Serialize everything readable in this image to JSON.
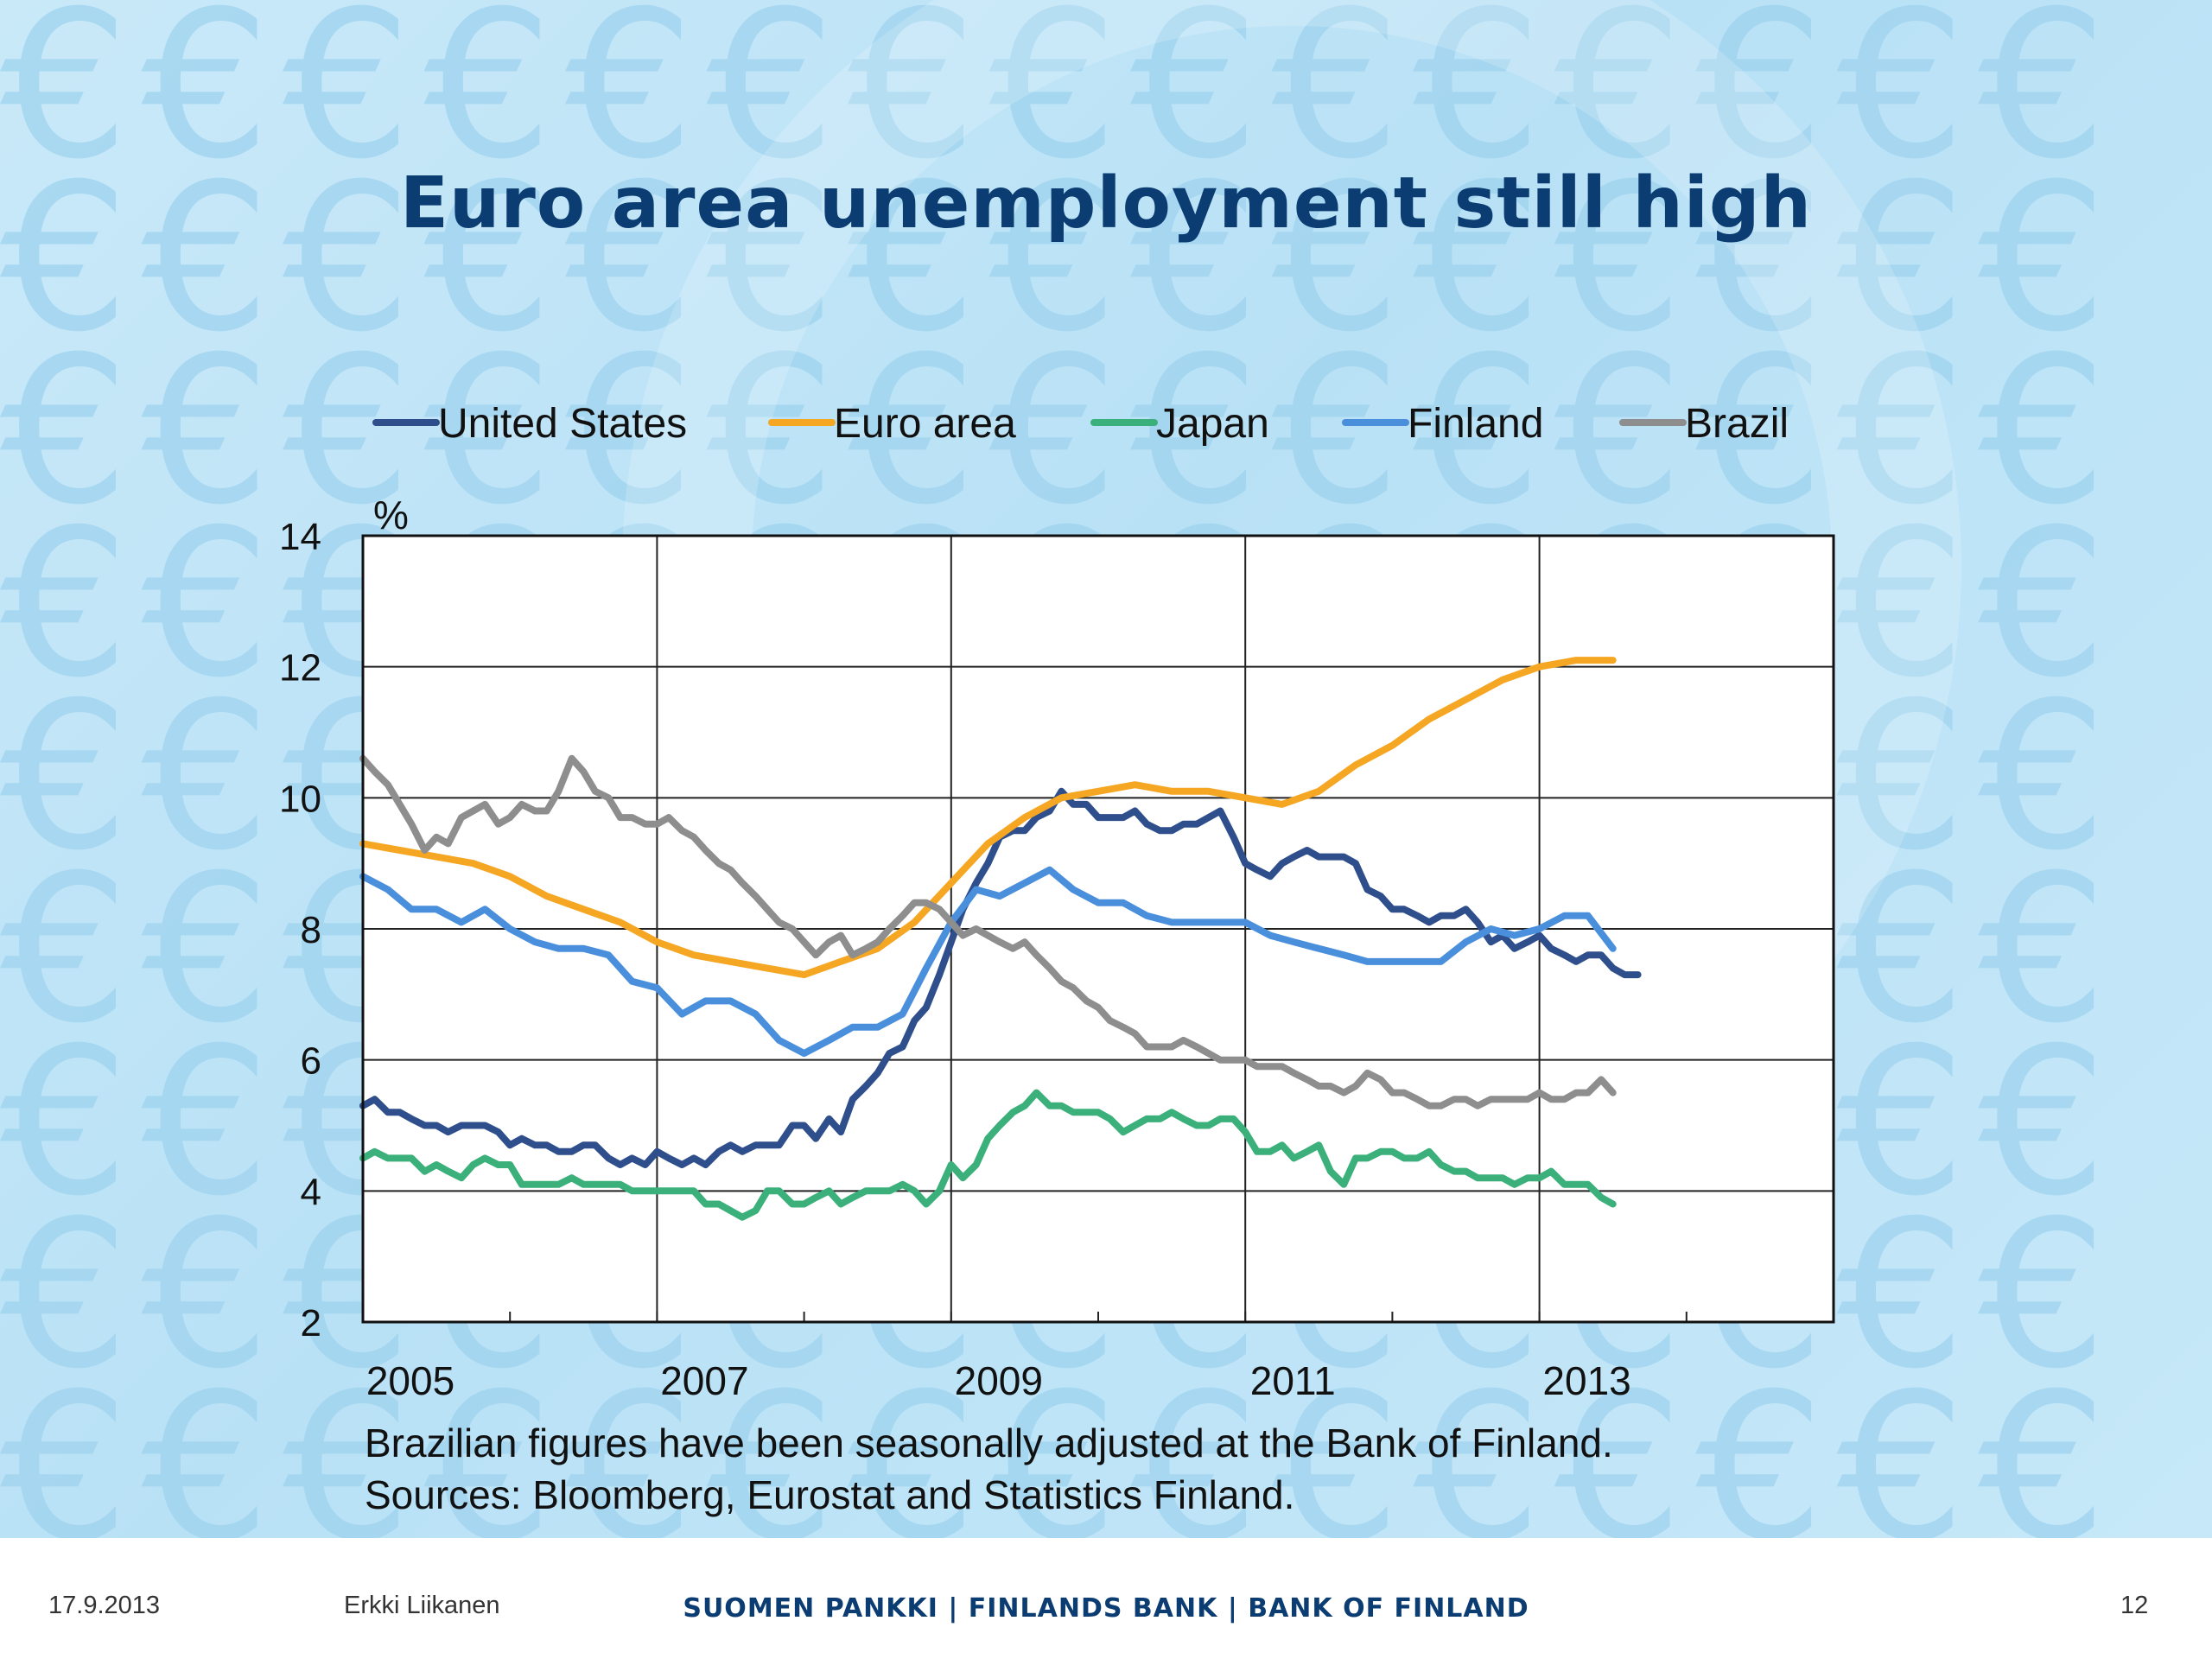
{
  "slide": {
    "title": "Euro area unemployment still high",
    "notes": [
      "Brazilian figures have been seasonally adjusted at the Bank of Finland.",
      "Sources: Bloomberg, Eurostat and Statistics Finland."
    ]
  },
  "footer": {
    "date": "17.9.2013",
    "author": "Erkki Liikanen",
    "bank": "SUOMEN PANKKI | FINLANDS BANK | BANK OF FINLAND",
    "page": "12"
  },
  "colors": {
    "title": "#0b3d73",
    "united_states": "#2f4f8c",
    "euro_area": "#f5a623",
    "japan": "#3bb07a",
    "finland": "#4a8fdc",
    "brazil": "#8e8e8e"
  },
  "background_icon": "euro-sign-icon",
  "chart_data": {
    "type": "line",
    "ylabel": "%",
    "ylim": [
      2,
      14
    ],
    "yticks": [
      2,
      4,
      6,
      8,
      10,
      12,
      14
    ],
    "xlim": [
      2005,
      2015
    ],
    "xticks": [
      2005,
      2007,
      2009,
      2011,
      2013
    ],
    "grid": true,
    "legend_position": "top",
    "series": [
      {
        "name": "United States",
        "color": "#2f4f8c",
        "x": [
          2005.0,
          2005.08,
          2005.17,
          2005.25,
          2005.33,
          2005.42,
          2005.5,
          2005.58,
          2005.67,
          2005.75,
          2005.83,
          2005.92,
          2006.0,
          2006.08,
          2006.17,
          2006.25,
          2006.33,
          2006.42,
          2006.5,
          2006.58,
          2006.67,
          2006.75,
          2006.83,
          2006.92,
          2007.0,
          2007.08,
          2007.17,
          2007.25,
          2007.33,
          2007.42,
          2007.5,
          2007.58,
          2007.67,
          2007.75,
          2007.83,
          2007.92,
          2008.0,
          2008.08,
          2008.17,
          2008.25,
          2008.33,
          2008.42,
          2008.5,
          2008.58,
          2008.67,
          2008.75,
          2008.83,
          2008.92,
          2009.0,
          2009.08,
          2009.17,
          2009.25,
          2009.33,
          2009.42,
          2009.5,
          2009.58,
          2009.67,
          2009.75,
          2009.83,
          2009.92,
          2010.0,
          2010.08,
          2010.17,
          2010.25,
          2010.33,
          2010.42,
          2010.5,
          2010.58,
          2010.67,
          2010.75,
          2010.83,
          2010.92,
          2011.0,
          2011.08,
          2011.17,
          2011.25,
          2011.33,
          2011.42,
          2011.5,
          2011.58,
          2011.67,
          2011.75,
          2011.83,
          2011.92,
          2012.0,
          2012.08,
          2012.17,
          2012.25,
          2012.33,
          2012.42,
          2012.5,
          2012.58,
          2012.67,
          2012.75,
          2012.83,
          2012.92,
          2013.0,
          2013.08,
          2013.17,
          2013.25,
          2013.33,
          2013.42,
          2013.5,
          2013.58,
          2013.67
        ],
        "y": [
          5.3,
          5.4,
          5.2,
          5.2,
          5.1,
          5.0,
          5.0,
          4.9,
          5.0,
          5.0,
          5.0,
          4.9,
          4.7,
          4.8,
          4.7,
          4.7,
          4.6,
          4.6,
          4.7,
          4.7,
          4.5,
          4.4,
          4.5,
          4.4,
          4.6,
          4.5,
          4.4,
          4.5,
          4.4,
          4.6,
          4.7,
          4.6,
          4.7,
          4.7,
          4.7,
          5.0,
          5.0,
          4.8,
          5.1,
          4.9,
          5.4,
          5.6,
          5.8,
          6.1,
          6.2,
          6.6,
          6.8,
          7.3,
          7.8,
          8.3,
          8.7,
          9.0,
          9.4,
          9.5,
          9.5,
          9.7,
          9.8,
          10.1,
          9.9,
          9.9,
          9.7,
          9.7,
          9.7,
          9.8,
          9.6,
          9.5,
          9.5,
          9.6,
          9.6,
          9.7,
          9.8,
          9.4,
          9.0,
          8.9,
          8.8,
          9.0,
          9.1,
          9.2,
          9.1,
          9.1,
          9.1,
          9.0,
          8.6,
          8.5,
          8.3,
          8.3,
          8.2,
          8.1,
          8.2,
          8.2,
          8.3,
          8.1,
          7.8,
          7.9,
          7.7,
          7.8,
          7.9,
          7.7,
          7.6,
          7.5,
          7.6,
          7.6,
          7.4,
          7.3,
          7.3
        ]
      },
      {
        "name": "Euro area",
        "color": "#f5a623",
        "x": [
          2005.0,
          2005.25,
          2005.5,
          2005.75,
          2006.0,
          2006.25,
          2006.5,
          2006.75,
          2007.0,
          2007.25,
          2007.5,
          2007.75,
          2008.0,
          2008.25,
          2008.5,
          2008.75,
          2009.0,
          2009.25,
          2009.5,
          2009.75,
          2010.0,
          2010.25,
          2010.5,
          2010.75,
          2011.0,
          2011.25,
          2011.5,
          2011.75,
          2012.0,
          2012.25,
          2012.5,
          2012.75,
          2013.0,
          2013.25,
          2013.5
        ],
        "y": [
          9.3,
          9.2,
          9.1,
          9.0,
          8.8,
          8.5,
          8.3,
          8.1,
          7.8,
          7.6,
          7.5,
          7.4,
          7.3,
          7.5,
          7.7,
          8.1,
          8.7,
          9.3,
          9.7,
          10.0,
          10.1,
          10.2,
          10.1,
          10.1,
          10.0,
          9.9,
          10.1,
          10.5,
          10.8,
          11.2,
          11.5,
          11.8,
          12.0,
          12.1,
          12.1
        ]
      },
      {
        "name": "Japan",
        "color": "#3bb07a",
        "x": [
          2005.0,
          2005.08,
          2005.17,
          2005.25,
          2005.33,
          2005.42,
          2005.5,
          2005.58,
          2005.67,
          2005.75,
          2005.83,
          2005.92,
          2006.0,
          2006.08,
          2006.17,
          2006.25,
          2006.33,
          2006.42,
          2006.5,
          2006.58,
          2006.67,
          2006.75,
          2006.83,
          2006.92,
          2007.0,
          2007.08,
          2007.17,
          2007.25,
          2007.33,
          2007.42,
          2007.5,
          2007.58,
          2007.67,
          2007.75,
          2007.83,
          2007.92,
          2008.0,
          2008.08,
          2008.17,
          2008.25,
          2008.33,
          2008.42,
          2008.5,
          2008.58,
          2008.67,
          2008.75,
          2008.83,
          2008.92,
          2009.0,
          2009.08,
          2009.17,
          2009.25,
          2009.33,
          2009.42,
          2009.5,
          2009.58,
          2009.67,
          2009.75,
          2009.83,
          2009.92,
          2010.0,
          2010.08,
          2010.17,
          2010.25,
          2010.33,
          2010.42,
          2010.5,
          2010.58,
          2010.67,
          2010.75,
          2010.83,
          2010.92,
          2011.0,
          2011.08,
          2011.17,
          2011.25,
          2011.33,
          2011.42,
          2011.5,
          2011.58,
          2011.67,
          2011.75,
          2011.83,
          2011.92,
          2012.0,
          2012.08,
          2012.17,
          2012.25,
          2012.33,
          2012.42,
          2012.5,
          2012.58,
          2012.67,
          2012.75,
          2012.83,
          2012.92,
          2013.0,
          2013.08,
          2013.17,
          2013.25,
          2013.33,
          2013.42,
          2013.5
        ],
        "y": [
          4.5,
          4.6,
          4.5,
          4.5,
          4.5,
          4.3,
          4.4,
          4.3,
          4.2,
          4.4,
          4.5,
          4.4,
          4.4,
          4.1,
          4.1,
          4.1,
          4.1,
          4.2,
          4.1,
          4.1,
          4.1,
          4.1,
          4.0,
          4.0,
          4.0,
          4.0,
          4.0,
          4.0,
          3.8,
          3.8,
          3.7,
          3.6,
          3.7,
          4.0,
          4.0,
          3.8,
          3.8,
          3.9,
          4.0,
          3.8,
          3.9,
          4.0,
          4.0,
          4.0,
          4.1,
          4.0,
          3.8,
          4.0,
          4.4,
          4.2,
          4.4,
          4.8,
          5.0,
          5.2,
          5.3,
          5.5,
          5.3,
          5.3,
          5.2,
          5.2,
          5.2,
          5.1,
          4.9,
          5.0,
          5.1,
          5.1,
          5.2,
          5.1,
          5.0,
          5.0,
          5.1,
          5.1,
          4.9,
          4.6,
          4.6,
          4.7,
          4.5,
          4.6,
          4.7,
          4.3,
          4.1,
          4.5,
          4.5,
          4.6,
          4.6,
          4.5,
          4.5,
          4.6,
          4.4,
          4.3,
          4.3,
          4.2,
          4.2,
          4.2,
          4.1,
          4.2,
          4.2,
          4.3,
          4.1,
          4.1,
          4.1,
          3.9,
          3.8
        ]
      },
      {
        "name": "Finland",
        "color": "#4a8fdc",
        "x": [
          2005.0,
          2005.17,
          2005.33,
          2005.5,
          2005.67,
          2005.83,
          2006.0,
          2006.17,
          2006.33,
          2006.5,
          2006.67,
          2006.83,
          2007.0,
          2007.17,
          2007.33,
          2007.5,
          2007.67,
          2007.83,
          2008.0,
          2008.17,
          2008.33,
          2008.5,
          2008.67,
          2008.83,
          2009.0,
          2009.17,
          2009.33,
          2009.5,
          2009.67,
          2009.83,
          2010.0,
          2010.17,
          2010.33,
          2010.5,
          2010.67,
          2010.83,
          2011.0,
          2011.17,
          2011.33,
          2011.5,
          2011.67,
          2011.83,
          2012.0,
          2012.17,
          2012.33,
          2012.5,
          2012.67,
          2012.83,
          2013.0,
          2013.17,
          2013.33,
          2013.5
        ],
        "y": [
          8.8,
          8.6,
          8.3,
          8.3,
          8.1,
          8.3,
          8.0,
          7.8,
          7.7,
          7.7,
          7.6,
          7.2,
          7.1,
          6.7,
          6.9,
          6.9,
          6.7,
          6.3,
          6.1,
          6.3,
          6.5,
          6.5,
          6.7,
          7.4,
          8.1,
          8.6,
          8.5,
          8.7,
          8.9,
          8.6,
          8.4,
          8.4,
          8.2,
          8.1,
          8.1,
          8.1,
          8.1,
          7.9,
          7.8,
          7.7,
          7.6,
          7.5,
          7.5,
          7.5,
          7.5,
          7.8,
          8.0,
          7.9,
          8.0,
          8.2,
          8.2,
          7.7
        ]
      },
      {
        "name": "Brazil",
        "color": "#8e8e8e",
        "x": [
          2005.0,
          2005.08,
          2005.17,
          2005.25,
          2005.33,
          2005.42,
          2005.5,
          2005.58,
          2005.67,
          2005.75,
          2005.83,
          2005.92,
          2006.0,
          2006.08,
          2006.17,
          2006.25,
          2006.33,
          2006.42,
          2006.5,
          2006.58,
          2006.67,
          2006.75,
          2006.83,
          2006.92,
          2007.0,
          2007.08,
          2007.17,
          2007.25,
          2007.33,
          2007.42,
          2007.5,
          2007.58,
          2007.67,
          2007.75,
          2007.83,
          2007.92,
          2008.0,
          2008.08,
          2008.17,
          2008.25,
          2008.33,
          2008.42,
          2008.5,
          2008.58,
          2008.67,
          2008.75,
          2008.83,
          2008.92,
          2009.0,
          2009.08,
          2009.17,
          2009.25,
          2009.33,
          2009.42,
          2009.5,
          2009.58,
          2009.67,
          2009.75,
          2009.83,
          2009.92,
          2010.0,
          2010.08,
          2010.17,
          2010.25,
          2010.33,
          2010.42,
          2010.5,
          2010.58,
          2010.67,
          2010.75,
          2010.83,
          2010.92,
          2011.0,
          2011.08,
          2011.17,
          2011.25,
          2011.33,
          2011.42,
          2011.5,
          2011.58,
          2011.67,
          2011.75,
          2011.83,
          2011.92,
          2012.0,
          2012.08,
          2012.17,
          2012.25,
          2012.33,
          2012.42,
          2012.5,
          2012.58,
          2012.67,
          2012.75,
          2012.83,
          2012.92,
          2013.0,
          2013.08,
          2013.17,
          2013.25,
          2013.33,
          2013.42,
          2013.5
        ],
        "y": [
          10.6,
          10.4,
          10.2,
          9.9,
          9.6,
          9.2,
          9.4,
          9.3,
          9.7,
          9.8,
          9.9,
          9.6,
          9.7,
          9.9,
          9.8,
          9.8,
          10.1,
          10.6,
          10.4,
          10.1,
          10.0,
          9.7,
          9.7,
          9.6,
          9.6,
          9.7,
          9.5,
          9.4,
          9.2,
          9.0,
          8.9,
          8.7,
          8.5,
          8.3,
          8.1,
          8.0,
          7.8,
          7.6,
          7.8,
          7.9,
          7.6,
          7.7,
          7.8,
          8.0,
          8.2,
          8.4,
          8.4,
          8.3,
          8.1,
          7.9,
          8.0,
          7.9,
          7.8,
          7.7,
          7.8,
          7.6,
          7.4,
          7.2,
          7.1,
          6.9,
          6.8,
          6.6,
          6.5,
          6.4,
          6.2,
          6.2,
          6.2,
          6.3,
          6.2,
          6.1,
          6.0,
          6.0,
          6.0,
          5.9,
          5.9,
          5.9,
          5.8,
          5.7,
          5.6,
          5.6,
          5.5,
          5.6,
          5.8,
          5.7,
          5.5,
          5.5,
          5.4,
          5.3,
          5.3,
          5.4,
          5.4,
          5.3,
          5.4,
          5.4,
          5.4,
          5.4,
          5.5,
          5.4,
          5.4,
          5.5,
          5.5,
          5.7,
          5.5
        ]
      }
    ]
  }
}
